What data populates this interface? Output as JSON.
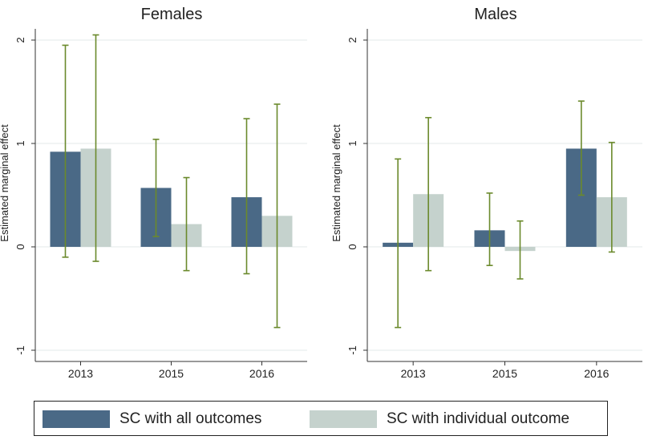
{
  "chart_data": [
    {
      "type": "bar",
      "title": "Females",
      "ylabel": "Estimated marginal effect",
      "xlabel": "",
      "ylim": [
        -1,
        2
      ],
      "yticks": [
        "-1",
        "0",
        "1",
        "2"
      ],
      "categories": [
        "2013",
        "2015",
        "2016"
      ],
      "grid": true,
      "series": [
        {
          "name": "SC with all outcomes",
          "color": "#4a6986",
          "values": [
            0.92,
            0.57,
            0.48
          ],
          "ci_low": [
            -0.1,
            0.1,
            -0.26
          ],
          "ci_high": [
            1.95,
            1.04,
            1.24
          ]
        },
        {
          "name": "SC with individual outcome",
          "color": "#c5d2cd",
          "values": [
            0.95,
            0.22,
            0.3
          ],
          "ci_low": [
            -0.14,
            -0.23,
            -0.78
          ],
          "ci_high": [
            2.05,
            0.67,
            1.38
          ]
        }
      ]
    },
    {
      "type": "bar",
      "title": "Males",
      "ylabel": "Estimated marginal effect",
      "xlabel": "",
      "ylim": [
        -1,
        2
      ],
      "yticks": [
        "-1",
        "0",
        "1",
        "2"
      ],
      "categories": [
        "2013",
        "2015",
        "2016"
      ],
      "grid": true,
      "series": [
        {
          "name": "SC with all outcomes",
          "color": "#4a6986",
          "values": [
            0.04,
            0.16,
            0.95
          ],
          "ci_low": [
            -0.78,
            -0.18,
            0.5
          ],
          "ci_high": [
            0.85,
            0.52,
            1.41
          ]
        },
        {
          "name": "SC with individual outcome",
          "color": "#c5d2cd",
          "values": [
            0.51,
            -0.04,
            0.48
          ],
          "ci_low": [
            -0.23,
            -0.31,
            -0.05
          ],
          "ci_high": [
            1.25,
            0.25,
            1.01
          ]
        }
      ]
    }
  ],
  "legend": {
    "items": [
      {
        "label": "SC with all outcomes",
        "color": "#4a6986"
      },
      {
        "label": "SC with individual outcome",
        "color": "#c5d2cd"
      }
    ]
  },
  "colors": {
    "error_bar": "#6b8a2c",
    "grid": "#e3e8e8",
    "axis": "#333333"
  }
}
